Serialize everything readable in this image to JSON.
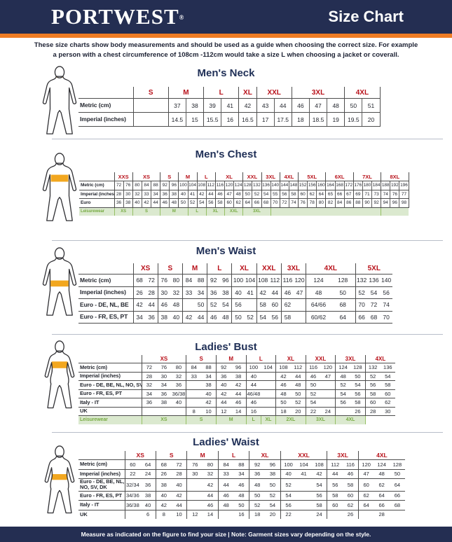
{
  "header": {
    "logo": "PORTWEST",
    "registered": "®",
    "title": "Size Chart"
  },
  "intro": {
    "line1": "These size charts show body measurements and should be used as a guide when choosing the correct size. For example",
    "line2": "a person with a chest circumference of 108cm -112cm would take a size L when choosing a jacket or coverall."
  },
  "footer": {
    "text": "Measure as indicated on the figure to find your size  |  Note: Garment sizes vary depending on the style."
  },
  "colors": {
    "navy": "#242e52",
    "orange": "#ef7c24",
    "size_red": "#b8111a",
    "leisure_green": "#78ab44",
    "leisure_bg": "#dbe9cf",
    "highlight_band": "#f2a71f"
  },
  "tables": [
    {
      "id": "t-neck",
      "title": "Men's Neck",
      "figure": {
        "sex": "male",
        "highlight": "neck"
      },
      "cell_dividers": true,
      "closed_bottom": true,
      "groups": [
        {
          "label": "S",
          "cols": 2
        },
        {
          "label": "M",
          "cols": 2
        },
        {
          "label": "L",
          "cols": 2
        },
        {
          "label": "XL",
          "cols": 1
        },
        {
          "label": "XXL",
          "cols": 2
        },
        {
          "label": "3XL",
          "cols": 3
        },
        {
          "label": "4XL",
          "cols": 2
        }
      ],
      "rows": [
        {
          "label": "Metric (cm)",
          "cells": [
            [
              "",
              2
            ],
            "37",
            "38",
            "39",
            "41",
            "42",
            "43",
            "44",
            "46",
            "47",
            "48",
            "50",
            "51"
          ]
        },
        {
          "label": "Imperial (inches)",
          "cells": [
            [
              "",
              2
            ],
            "14.5",
            "15",
            "15.5",
            "16",
            "16.5",
            "17",
            "17.5",
            "18",
            "18.5",
            "19",
            "19.5",
            "20"
          ]
        }
      ]
    },
    {
      "id": "t-chest",
      "title": "Men's Chest",
      "figure": {
        "sex": "male",
        "highlight": "chest"
      },
      "cell_dividers": true,
      "closed_bottom": false,
      "groups": [
        {
          "label": "XXS",
          "cols": 2
        },
        {
          "label": "XS",
          "cols": 3
        },
        {
          "label": "S",
          "cols": 2
        },
        {
          "label": "M",
          "cols": 2
        },
        {
          "label": "L",
          "cols": 2
        },
        {
          "label": "XL",
          "cols": 3
        },
        {
          "label": "XXL",
          "cols": 2
        },
        {
          "label": "3XL",
          "cols": 2
        },
        {
          "label": "4XL",
          "cols": 2
        },
        {
          "label": "5XL",
          "cols": 3
        },
        {
          "label": "6XL",
          "cols": 3
        },
        {
          "label": "7XL",
          "cols": 3
        },
        {
          "label": "8XL",
          "cols": 3
        }
      ],
      "rows": [
        {
          "label": "Metric (cm)",
          "cells": [
            "72",
            "76",
            "80",
            "84",
            "88",
            "92",
            "96",
            "100",
            "104",
            "108",
            "112",
            "116",
            "120",
            "124",
            "128",
            "132",
            "136",
            "140",
            "144",
            "148",
            "152",
            "156",
            "160",
            "164",
            "168",
            "172",
            "176",
            "180",
            "184",
            "188",
            "192",
            "196"
          ]
        },
        {
          "label": "Imperial (inches)",
          "cells": [
            "28",
            "30",
            "32",
            "33",
            "34",
            "36",
            "38",
            "40",
            "41",
            "42",
            "44",
            "46",
            "47",
            "48",
            "50",
            "52",
            "54",
            "55",
            "56",
            "58",
            "60",
            "62",
            "64",
            "65",
            "66",
            "67",
            "69",
            "71",
            "73",
            "74",
            "76",
            "77"
          ]
        },
        {
          "label": "Euro",
          "cells": [
            "36",
            "38",
            "40",
            "42",
            "44",
            "46",
            "48",
            "50",
            "52",
            "54",
            "56",
            "58",
            "60",
            "62",
            "64",
            "66",
            "68",
            "70",
            "72",
            "74",
            "76",
            "78",
            "80",
            "82",
            "84",
            "86",
            "88",
            "90",
            "92",
            "94",
            "96",
            "98"
          ]
        },
        {
          "label": "Leisurewear",
          "leisure": true,
          "cells": [
            [
              "XS",
              2
            ],
            [
              "S",
              3
            ],
            [
              "M",
              3
            ],
            [
              "L",
              2
            ],
            [
              "XL",
              2
            ],
            [
              "XXL",
              2
            ],
            [
              "3XL",
              3
            ],
            [
              "",
              12
            ],
            [
              "",
              3
            ]
          ]
        }
      ]
    },
    {
      "id": "t-mwaist",
      "title": "Men's Waist",
      "figure": {
        "sex": "male",
        "highlight": "waist"
      },
      "cell_dividers": false,
      "closed_bottom": true,
      "groups": [
        {
          "label": "XS",
          "cols": 2
        },
        {
          "label": "S",
          "cols": 2
        },
        {
          "label": "M",
          "cols": 2
        },
        {
          "label": "L",
          "cols": 2
        },
        {
          "label": "XL",
          "cols": 2
        },
        {
          "label": "XXL",
          "cols": 2
        },
        {
          "label": "3XL",
          "cols": 2
        },
        {
          "label": "4XL",
          "cols": 4
        },
        {
          "label": "5XL",
          "cols": 3
        }
      ],
      "rows": [
        {
          "label": "Metric (cm)",
          "cells": [
            "68",
            "72",
            "76",
            "80",
            "84",
            "88",
            "92",
            "96",
            "100",
            "104",
            "108",
            "112",
            "116",
            "120",
            [
              "124",
              2
            ],
            [
              "128",
              2
            ],
            "132",
            "136",
            "140"
          ]
        },
        {
          "label": "Imperial (inches)",
          "cells": [
            "26",
            "28",
            "30",
            "32",
            "33",
            "34",
            "36",
            "38",
            "40",
            "41",
            "42",
            "44",
            "46",
            "47",
            [
              "48",
              2
            ],
            [
              "50",
              2
            ],
            "52",
            "54",
            "56"
          ]
        },
        {
          "label": "Euro - DE, NL, BE",
          "cells": [
            "42",
            "44",
            "46",
            "48",
            "",
            "50",
            "52",
            "54",
            "56",
            "",
            "58",
            "60",
            "62",
            "",
            [
              "64/66",
              2
            ],
            [
              "68",
              2
            ],
            "70",
            "72",
            "74"
          ]
        },
        {
          "label": "Euro - FR, ES, PT",
          "cells": [
            "34",
            "36",
            "38",
            "40",
            "42",
            "44",
            "46",
            "48",
            "50",
            "52",
            "54",
            "56",
            "58",
            "",
            [
              "60/62",
              2
            ],
            [
              "64",
              2
            ],
            "66",
            "68",
            "70"
          ]
        }
      ]
    },
    {
      "id": "t-bust",
      "title": "Ladies' Bust",
      "figure": {
        "sex": "female",
        "highlight": "bust"
      },
      "cell_dividers": false,
      "closed_bottom": false,
      "groups": [
        {
          "label": "XS",
          "cols": 3
        },
        {
          "label": "S",
          "cols": 2
        },
        {
          "label": "M",
          "cols": 2
        },
        {
          "label": "L",
          "cols": 2
        },
        {
          "label": "XL",
          "cols": 2
        },
        {
          "label": "XXL",
          "cols": 2
        },
        {
          "label": "3XL",
          "cols": 2
        },
        {
          "label": "4XL",
          "cols": 2
        }
      ],
      "rows": [
        {
          "label": "Metric (cm)",
          "cells": [
            "72",
            "76",
            "80",
            "84",
            "88",
            "92",
            "96",
            "100",
            "104",
            "108",
            "112",
            "116",
            "120",
            "124",
            "128",
            "132",
            "136"
          ]
        },
        {
          "label": "Imperial (inches)",
          "cells": [
            "28",
            "30",
            "32",
            "33",
            "34",
            "36",
            "38",
            "40",
            "",
            "42",
            "44",
            "46",
            "47",
            "48",
            "50",
            "52",
            "54"
          ]
        },
        {
          "label": "Euro - DE, BE, NL, NO, SV, DK",
          "cells": [
            "32",
            "34",
            "36",
            "",
            "38",
            "40",
            "42",
            "44",
            "",
            "46",
            "48",
            "50",
            "",
            "52",
            "54",
            "56",
            "58"
          ]
        },
        {
          "label": "Euro - FR, ES, PT",
          "cells": [
            "34",
            "36",
            "36/38",
            "",
            "40",
            "42",
            "44",
            "46/48",
            "",
            "48",
            "50",
            "52",
            "",
            "54",
            "56",
            "58",
            "60"
          ]
        },
        {
          "label": "Italy - IT",
          "cells": [
            "36",
            "38",
            "40",
            "",
            "42",
            "44",
            "46",
            "46",
            "",
            "50",
            "52",
            "54",
            "",
            "56",
            "58",
            "60",
            "62"
          ]
        },
        {
          "label": "UK",
          "cells": [
            "",
            "",
            "",
            "8",
            "10",
            "12",
            "14",
            "16",
            "",
            "18",
            "20",
            "22",
            "24",
            "",
            "26",
            "28",
            "30"
          ]
        },
        {
          "label": "Leisurewear",
          "leisure": true,
          "cells": [
            [
              "XS",
              3
            ],
            [
              "S",
              2
            ],
            [
              "M",
              2
            ],
            "L",
            "XL",
            [
              "2XL",
              2
            ],
            [
              "3XL",
              2
            ],
            [
              "4XL",
              2
            ],
            [
              "",
              2,
              "plain"
            ]
          ]
        }
      ]
    },
    {
      "id": "t-lwaist",
      "title": "Ladies' Waist",
      "figure": {
        "sex": "female",
        "highlight": "waist"
      },
      "cell_dividers": false,
      "closed_bottom": false,
      "groups": [
        {
          "label": "XS",
          "cols": 2
        },
        {
          "label": "S",
          "cols": 2
        },
        {
          "label": "M",
          "cols": 2
        },
        {
          "label": "L",
          "cols": 2
        },
        {
          "label": "XL",
          "cols": 2
        },
        {
          "label": "XXL",
          "cols": 3
        },
        {
          "label": "3XL",
          "cols": 2
        },
        {
          "label": "4XL",
          "cols": 3
        }
      ],
      "rows": [
        {
          "label": "Metric (cm)",
          "cells": [
            "60",
            "64",
            "68",
            "72",
            "76",
            "80",
            "84",
            "88",
            "92",
            "96",
            "100",
            "104",
            "108",
            "112",
            "116",
            "120",
            "124",
            "128"
          ]
        },
        {
          "label": "Imperial (inches)",
          "cells": [
            "22",
            "24",
            "26",
            "28",
            "30",
            "32",
            "33",
            "34",
            "36",
            "38",
            "40",
            "41",
            "42",
            "44",
            "46",
            "47",
            "48",
            "50"
          ]
        },
        {
          "label": "Euro - DE, BE, NL, NO, SV, DK",
          "cells": [
            "32/34",
            "36",
            "38",
            "40",
            "",
            "42",
            "44",
            "46",
            "48",
            "50",
            "52",
            "",
            "54",
            "56",
            "58",
            "60",
            "62",
            "64"
          ]
        },
        {
          "label": "Euro - FR, ES, PT",
          "cells": [
            "34/36",
            "38",
            "40",
            "42",
            "",
            "44",
            "46",
            "48",
            "50",
            "52",
            "54",
            "",
            "56",
            "58",
            "60",
            "62",
            "64",
            "66"
          ]
        },
        {
          "label": "Italy - IT",
          "cells": [
            "36/38",
            "40",
            "42",
            "44",
            "",
            "46",
            "48",
            "50",
            "52",
            "54",
            "56",
            "",
            "58",
            "60",
            "62",
            "64",
            "66",
            "68"
          ]
        },
        {
          "label": "UK",
          "cells": [
            "",
            "6",
            "8",
            "10",
            "12",
            "14",
            "",
            "16",
            "18",
            "20",
            "22",
            "",
            "24",
            "",
            "26",
            "",
            "28",
            ""
          ]
        }
      ]
    }
  ]
}
